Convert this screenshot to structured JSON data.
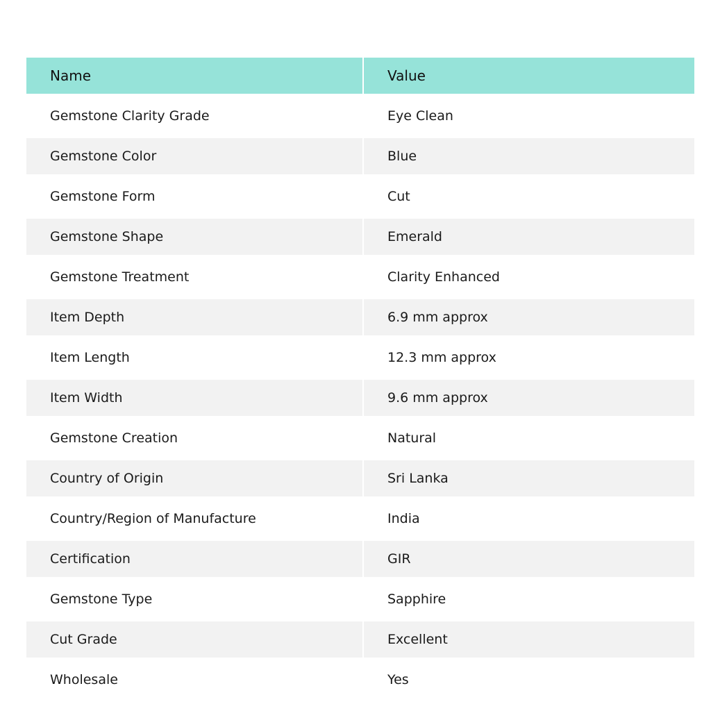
{
  "colors": {
    "header_bg": "#96e3d9",
    "stripe_bg": "#f2f2f2"
  },
  "table": {
    "headers": [
      "Name",
      "Value"
    ],
    "rows": [
      [
        "Gemstone Clarity Grade",
        "Eye Clean"
      ],
      [
        "Gemstone Color",
        "Blue"
      ],
      [
        "Gemstone Form",
        "Cut"
      ],
      [
        "Gemstone Shape",
        "Emerald"
      ],
      [
        "Gemstone Treatment",
        "Clarity Enhanced"
      ],
      [
        "Item Depth",
        "6.9 mm approx"
      ],
      [
        "Item Length",
        "12.3 mm approx"
      ],
      [
        "Item Width",
        "9.6 mm approx"
      ],
      [
        "Gemstone Creation",
        "Natural"
      ],
      [
        "Country of Origin",
        "Sri Lanka"
      ],
      [
        "Country/Region of Manufacture",
        "India"
      ],
      [
        "Certification",
        "GIR"
      ],
      [
        "Gemstone Type",
        "Sapphire"
      ],
      [
        "Cut Grade",
        "Excellent"
      ],
      [
        "Wholesale",
        "Yes"
      ]
    ]
  }
}
